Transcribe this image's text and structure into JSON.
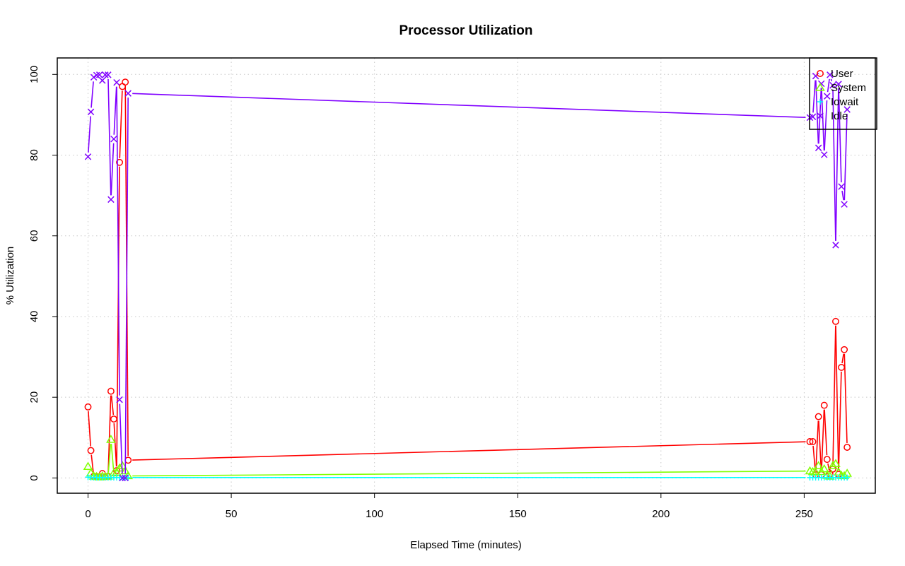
{
  "chart_data": {
    "type": "line",
    "title": "Processor Utilization",
    "xlabel": "Elapsed Time (minutes)",
    "ylabel": "% Utilization",
    "xlim": [
      0,
      265
    ],
    "ylim": [
      0,
      100
    ],
    "xticks": [
      0,
      50,
      100,
      150,
      200,
      250
    ],
    "yticks": [
      0,
      20,
      40,
      60,
      80,
      100
    ],
    "grid": true,
    "legend_position": "top-right",
    "x": [
      0,
      1,
      2,
      3,
      4,
      5,
      6,
      7,
      8,
      9,
      10,
      11,
      12,
      13,
      14,
      252,
      253,
      254,
      255,
      256,
      257,
      258,
      259,
      260,
      261,
      262,
      263,
      264,
      265
    ],
    "series": [
      {
        "name": "User",
        "color": "#ff0000",
        "marker": "circle",
        "values": [
          17.6,
          6.8,
          0.4,
          0.3,
          0.3,
          1.1,
          0.3,
          0.4,
          21.5,
          14.6,
          1.8,
          78.2,
          97.0,
          98.1,
          4.4,
          9.0,
          9.0,
          0.8,
          15.2,
          0.8,
          18.0,
          4.6,
          0.9,
          2.2,
          38.8,
          0.9,
          27.4,
          31.8,
          7.6
        ]
      },
      {
        "name": "System",
        "color": "#80ff00",
        "marker": "triangle",
        "values": [
          2.8,
          1.2,
          0.4,
          0.3,
          0.2,
          0.4,
          0.3,
          0.4,
          9.5,
          1.2,
          1.4,
          2.4,
          3.0,
          1.7,
          0.5,
          1.7,
          1.5,
          1.4,
          3.0,
          1.5,
          2.2,
          0.6,
          0.4,
          3.0,
          3.5,
          1.4,
          0.6,
          0.5,
          1.1
        ]
      },
      {
        "name": "Iowait",
        "color": "#00ffff",
        "marker": "plus",
        "values": [
          0.2,
          0.1,
          0.1,
          0.1,
          0.1,
          0.1,
          0.1,
          0.1,
          0.1,
          0.1,
          0.1,
          0.1,
          0.1,
          0.1,
          0.1,
          0.1,
          0.1,
          0.1,
          0.1,
          0.1,
          0.1,
          0.1,
          0.1,
          0.1,
          0.1,
          0.1,
          0.1,
          0.1,
          0.1
        ]
      },
      {
        "name": "Idle",
        "color": "#8000ff",
        "marker": "cross",
        "values": [
          79.6,
          90.7,
          99.3,
          99.8,
          99.9,
          98.5,
          99.9,
          99.9,
          69.0,
          84.0,
          98.0,
          19.4,
          0.0,
          0.0,
          95.3,
          89.3,
          89.5,
          99.6,
          81.8,
          97.7,
          80.1,
          94.6,
          99.9,
          97.3,
          57.7,
          97.6,
          72.2,
          67.8,
          91.3
        ]
      }
    ]
  }
}
